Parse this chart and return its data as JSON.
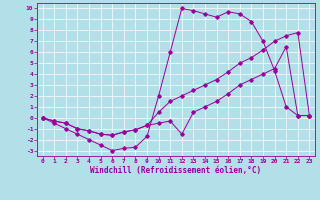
{
  "xlabel": "Windchill (Refroidissement éolien,°C)",
  "background_color": "#b3dfe8",
  "line_color": "#990099",
  "grid_color": "#ffffff",
  "xlim": [
    -0.5,
    23.5
  ],
  "ylim": [
    -3.5,
    10.5
  ],
  "xticks": [
    0,
    1,
    2,
    3,
    4,
    5,
    6,
    7,
    8,
    9,
    10,
    11,
    12,
    13,
    14,
    15,
    16,
    17,
    18,
    19,
    20,
    21,
    22,
    23
  ],
  "yticks": [
    -3,
    -2,
    -1,
    0,
    1,
    2,
    3,
    4,
    5,
    6,
    7,
    8,
    9,
    10
  ],
  "line1_x": [
    0,
    1,
    2,
    3,
    4,
    5,
    6,
    7,
    8,
    9,
    10,
    11,
    12,
    13,
    14,
    15,
    16,
    17,
    18,
    19,
    20,
    21,
    22,
    23
  ],
  "line1_y": [
    0,
    -0.5,
    -1.0,
    -1.5,
    -2.0,
    -2.5,
    -3.0,
    -2.8,
    -2.7,
    -1.7,
    2.0,
    6.0,
    10.0,
    9.8,
    9.5,
    9.2,
    9.7,
    9.5,
    8.8,
    7.0,
    4.3,
    1.0,
    0.2,
    0.2
  ],
  "line2_x": [
    0,
    1,
    2,
    3,
    4,
    5,
    6,
    7,
    8,
    9,
    10,
    11,
    12,
    13,
    14,
    15,
    16,
    17,
    18,
    19,
    20,
    21,
    22,
    23
  ],
  "line2_y": [
    0,
    -0.3,
    -0.5,
    -1.0,
    -1.2,
    -1.5,
    -1.6,
    -1.3,
    -1.1,
    -0.7,
    0.5,
    1.5,
    2.0,
    2.5,
    3.0,
    3.5,
    4.2,
    5.0,
    5.5,
    6.2,
    7.0,
    7.5,
    7.8,
    0.2
  ],
  "line3_x": [
    0,
    1,
    2,
    3,
    4,
    5,
    6,
    7,
    8,
    9,
    10,
    11,
    12,
    13,
    14,
    15,
    16,
    17,
    18,
    19,
    20,
    21,
    22,
    23
  ],
  "line3_y": [
    0,
    -0.3,
    -0.5,
    -1.0,
    -1.2,
    -1.5,
    -1.6,
    -1.3,
    -1.1,
    -0.7,
    -0.5,
    -0.3,
    -1.5,
    0.5,
    1.0,
    1.5,
    2.2,
    3.0,
    3.5,
    4.0,
    4.5,
    6.5,
    0.2,
    0.2
  ],
  "xlabel_fontsize": 5.5,
  "tick_fontsize": 4.5,
  "marker_size": 1.8,
  "linewidth": 0.7
}
